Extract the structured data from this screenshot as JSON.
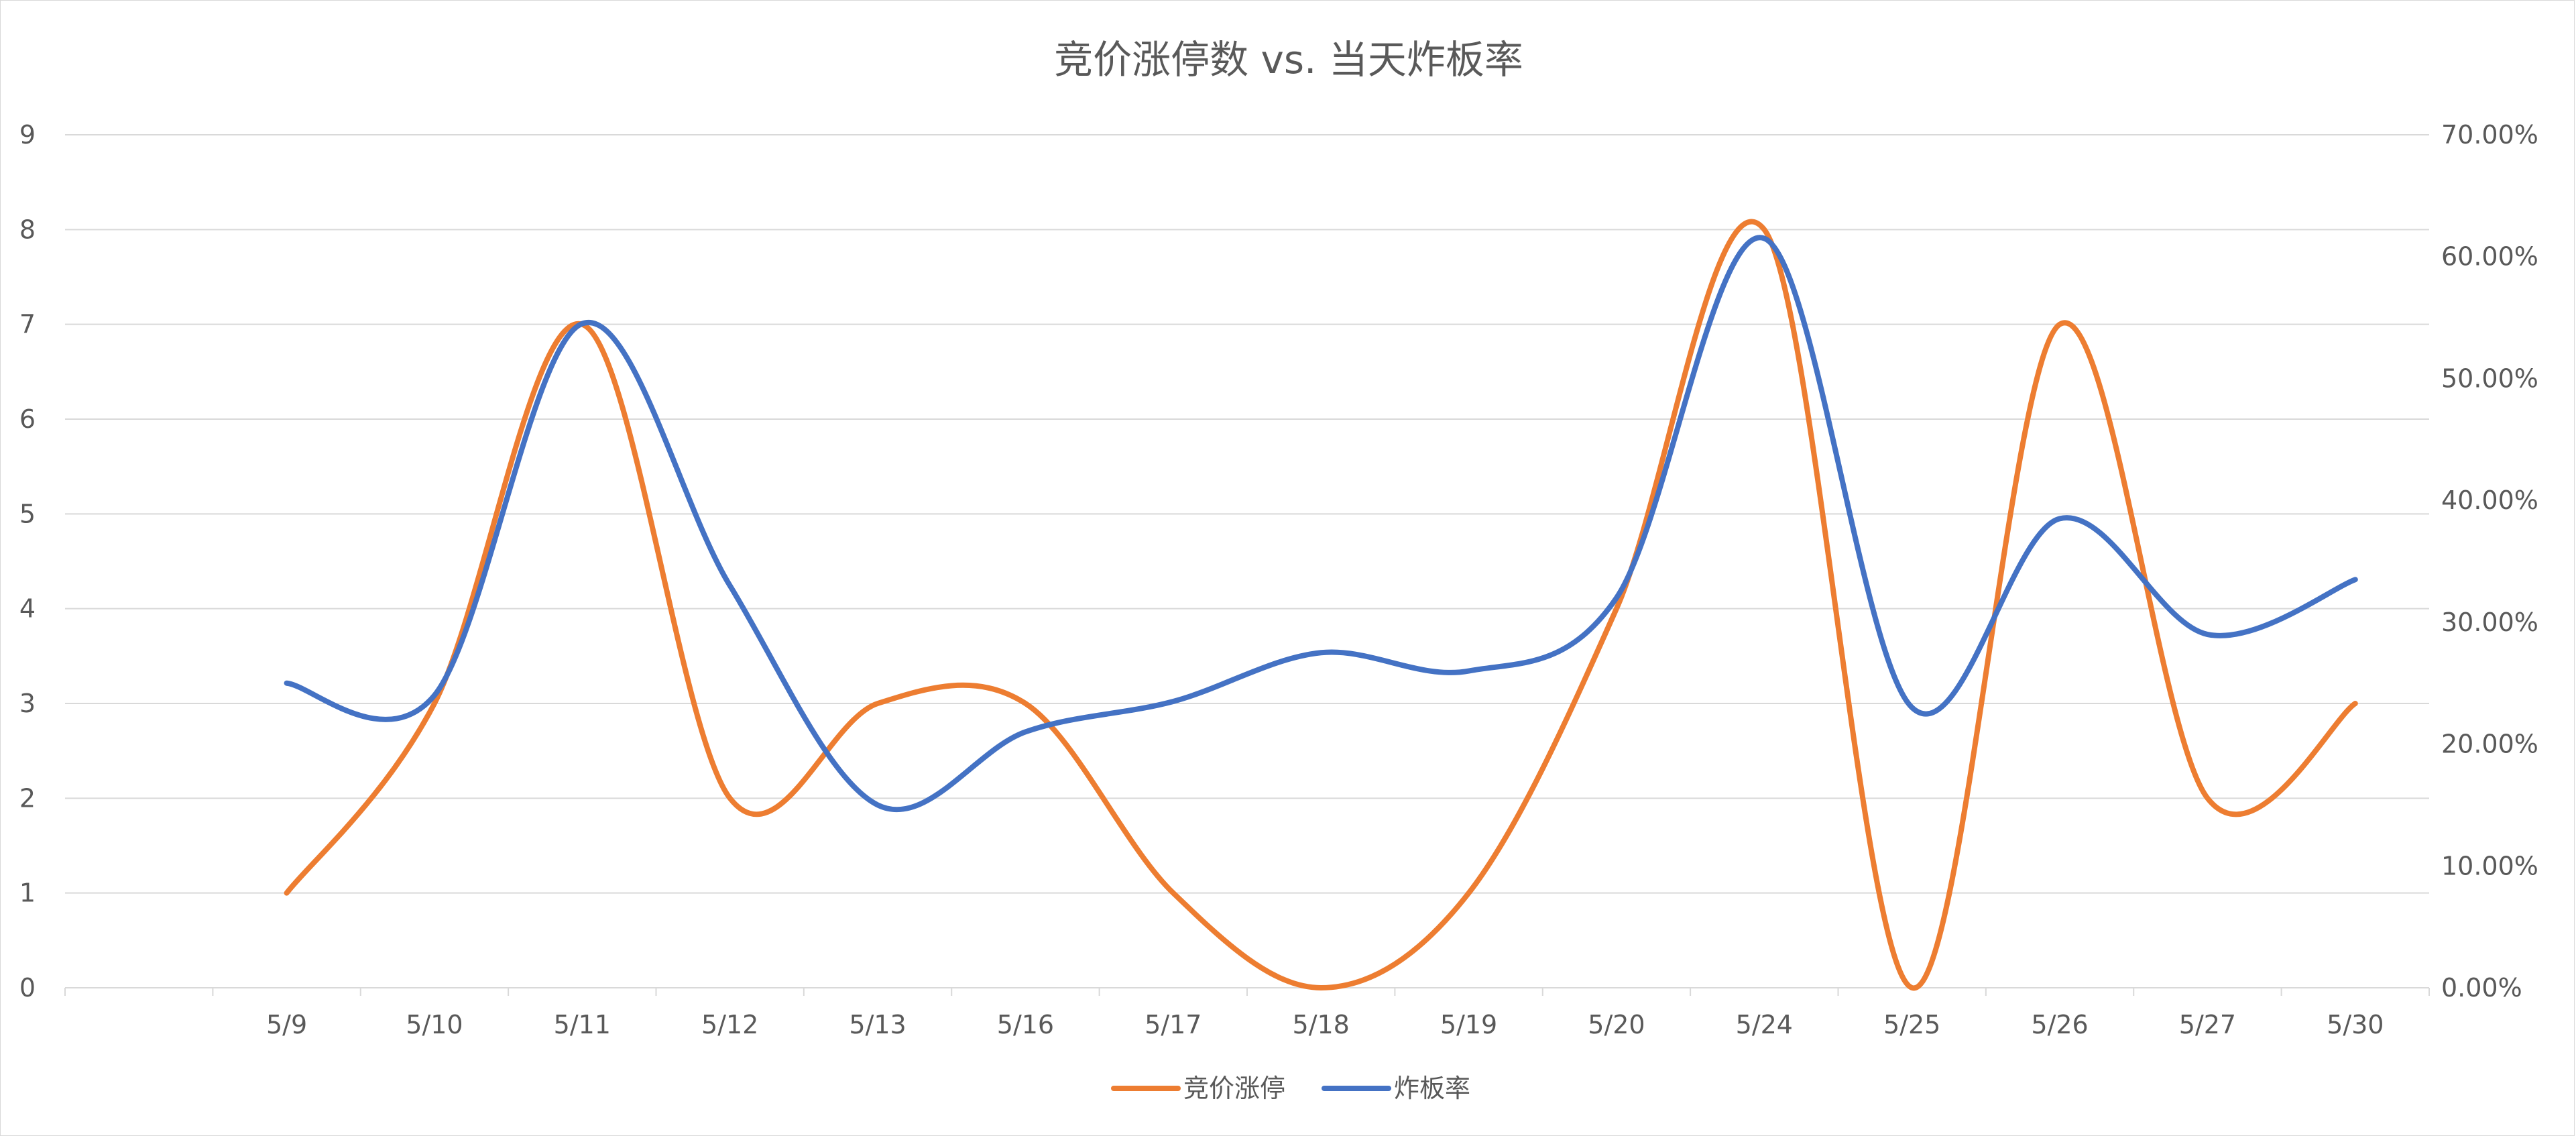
{
  "chart_data": {
    "type": "line",
    "title": "竞价涨停数 vs. 当天炸板率",
    "categories": [
      "5/9",
      "5/10",
      "5/11",
      "5/12",
      "5/13",
      "5/16",
      "5/17",
      "5/18",
      "5/19",
      "5/20",
      "5/24",
      "5/25",
      "5/26",
      "5/27",
      "5/30"
    ],
    "series": [
      {
        "name": "竞价涨停",
        "axis": "left",
        "color": "#ED7D31",
        "values": [
          1,
          3,
          7,
          2,
          3,
          3,
          1,
          0,
          1,
          4,
          8,
          0,
          7,
          2,
          3
        ]
      },
      {
        "name": "炸板率",
        "axis": "right",
        "color": "#4472C4",
        "values": [
          0.25,
          0.24,
          0.545,
          0.33,
          0.15,
          0.21,
          0.235,
          0.275,
          0.26,
          0.32,
          0.615,
          0.23,
          0.385,
          0.29,
          0.335
        ]
      }
    ],
    "y_left": {
      "min": 0,
      "max": 9,
      "ticks": [
        "0",
        "1",
        "2",
        "3",
        "4",
        "5",
        "6",
        "7",
        "8",
        "9"
      ]
    },
    "y_right": {
      "min": 0,
      "max": 0.7,
      "ticks": [
        "0.00%",
        "10.00%",
        "20.00%",
        "30.00%",
        "40.00%",
        "50.00%",
        "60.00%",
        "70.00%"
      ]
    },
    "grid": true,
    "legend": "bottom",
    "gridline_color": "#d9d9d9",
    "text_color": "#595959"
  }
}
